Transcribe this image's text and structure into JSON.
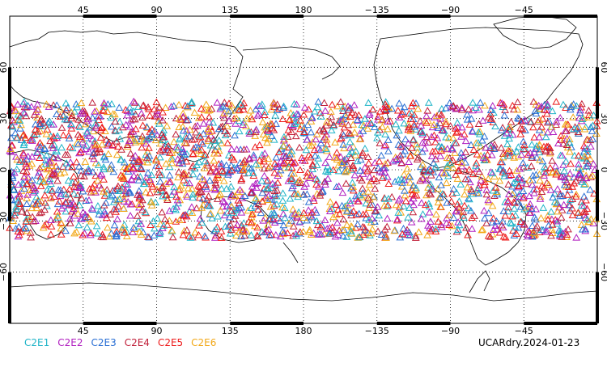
{
  "map": {
    "projection": "cylindrical-equidistant",
    "lon_range": [
      0,
      360
    ],
    "lat_range": [
      -90,
      90
    ],
    "lon_ticks": [
      {
        "lon": 45,
        "label": "45"
      },
      {
        "lon": 90,
        "label": "90"
      },
      {
        "lon": 135,
        "label": "135"
      },
      {
        "lon": 180,
        "label": "180"
      },
      {
        "lon": 225,
        "label": "−135"
      },
      {
        "lon": 270,
        "label": "−90"
      },
      {
        "lon": 315,
        "label": "−45"
      }
    ],
    "lat_ticks": [
      {
        "lat": 60,
        "label": "60"
      },
      {
        "lat": 30,
        "label": "30"
      },
      {
        "lat": 0,
        "label": "0"
      },
      {
        "lat": -30,
        "label": "−30"
      },
      {
        "lat": -60,
        "label": "−60"
      }
    ],
    "grid": "dotted",
    "marker": "open-triangle",
    "observation_band_lat": [
      -40,
      40
    ]
  },
  "legend": [
    {
      "label": "C2E1",
      "color": "#1fb4c8"
    },
    {
      "label": "C2E2",
      "color": "#b01fc0"
    },
    {
      "label": "C2E3",
      "color": "#2a6fd4"
    },
    {
      "label": "C2E4",
      "color": "#c0203a"
    },
    {
      "label": "C2E5",
      "color": "#ee1a1a"
    },
    {
      "label": "C2E6",
      "color": "#f2a818"
    }
  ],
  "stamp": "UCARdry.2024-01-23"
}
